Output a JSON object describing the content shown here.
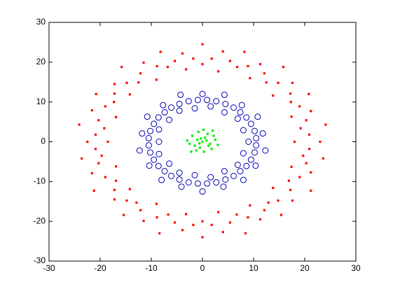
{
  "chart_data": {
    "type": "scatter",
    "xlim": [
      -30,
      30
    ],
    "ylim": [
      -30,
      30
    ],
    "xticks": [
      -30,
      -20,
      -10,
      0,
      10,
      20,
      30
    ],
    "yticks": [
      -30,
      -20,
      -10,
      0,
      10,
      20,
      30
    ],
    "series": [
      {
        "color": "#ff0000",
        "marker": "dot",
        "x": [
          18,
          19.2,
          17.4,
          17.3,
          13.8,
          12.5,
          9.3,
          6.8,
          3.1,
          0,
          -3.2,
          -6.8,
          -9,
          -12.5,
          -14.2,
          -17.3,
          -16.9,
          -19.2,
          -18.5,
          -19.7,
          -16.9,
          -16.9,
          -14.2,
          -12.9,
          -9,
          -6.7,
          -3.2,
          0,
          3.1,
          6.7,
          9.3,
          12.9,
          13.8,
          16.9,
          17.4,
          19.7,
          23,
          24.1,
          21.2,
          20.8,
          17.6,
          15.8,
          11.3,
          8.2,
          4,
          0,
          -3.9,
          -8.2,
          -11.5,
          -15.8,
          -17.2,
          -20.8,
          -21.6,
          -24.1,
          -22.5,
          -23.6,
          -21.6,
          -21.2,
          -17.2,
          -15.4,
          -11.5,
          -8.4,
          -3.9,
          0,
          4,
          8.4,
          11.3,
          15.4,
          17.6,
          21.2,
          21.2,
          23.6,
          20.9,
          20.3,
          19,
          17.2,
          14.8,
          12.1,
          8.9,
          5.4,
          1.8,
          -1.8,
          -5.4,
          -8.9,
          -12.1,
          -14.8,
          -17.2,
          -19,
          -20.3,
          -20.9,
          -20.9,
          -20.3,
          -19,
          -17.2,
          -14.8,
          -12.1,
          -8.9,
          -5.4,
          -1.8,
          1.8,
          5.4,
          8.9,
          12.1,
          14.8,
          17.2,
          19,
          20.3,
          20.9
        ],
        "values": [
          0,
          3.4,
          6.3,
          10,
          11.6,
          14.9,
          16,
          18.8,
          17.7,
          19.5,
          18.2,
          18.8,
          15.6,
          14.9,
          11.9,
          10,
          6.2,
          3.4,
          0,
          -3.5,
          -6.2,
          -9.8,
          -11.9,
          -15.3,
          -15.6,
          -18.3,
          -18.2,
          -20,
          -17.7,
          -18.3,
          -16,
          -15.3,
          -11.6,
          -9.8,
          -6.3,
          -3.5,
          0,
          4.3,
          7.7,
          12,
          14.8,
          18.8,
          19.5,
          22.6,
          22.7,
          24.5,
          22.2,
          22.6,
          19.9,
          18.8,
          14.5,
          12,
          7.9,
          4.3,
          0,
          -4.2,
          -7.9,
          -12.3,
          -14.5,
          -18.4,
          -19.9,
          -23,
          -22.2,
          -24,
          -22.7,
          -23,
          -19.5,
          -18.4,
          -14.8,
          -12.3,
          -7.7,
          -4.2,
          1.8,
          5.4,
          8.9,
          12.1,
          14.8,
          17.2,
          19,
          20.3,
          20.9,
          20.9,
          20.3,
          19,
          17.2,
          14.8,
          12.1,
          8.9,
          5.4,
          1.8,
          -1.8,
          -5.4,
          -8.9,
          -12.1,
          -14.8,
          -17.2,
          -19,
          -20.3,
          -20.9,
          -20.9,
          -20.3,
          -19,
          -17.2,
          -14.8,
          -12.1,
          -8.9,
          -5.4,
          -1.8
        ]
      },
      {
        "color": "#0000b4",
        "marker": "circle",
        "x": [
          9,
          11.8,
          8,
          10.8,
          6.9,
          7.7,
          4.3,
          4.3,
          1.6,
          0,
          -1.5,
          -4.3,
          -4.5,
          -7.7,
          -6.5,
          -10.8,
          -8.5,
          -11.8,
          -8.5,
          -12.3,
          -8.5,
          -10.4,
          -6.5,
          -8,
          -4.5,
          -4.1,
          -1.5,
          0,
          1.6,
          4.1,
          4.3,
          8,
          6.9,
          10.4,
          8,
          12.3,
          10.5,
          10.2,
          9.5,
          8.6,
          7.4,
          6.1,
          4.5,
          2.7,
          0.9,
          -0.9,
          -2.7,
          -4.5,
          -6.1,
          -7.4,
          -8.6,
          -9.5,
          -10.2,
          -10.5,
          -10.5,
          -10.2,
          -9.5,
          -8.6,
          -7.4,
          -6.1,
          -4.5,
          -2.7,
          -0.9,
          0.9,
          2.7,
          4.5,
          6.1,
          7.4,
          8.6,
          9.5,
          10.2,
          10.5
        ],
        "values": [
          0,
          2.1,
          2.9,
          6.3,
          5.8,
          9.2,
          7.4,
          11.8,
          8.9,
          12,
          8.4,
          11.8,
          7.8,
          9.2,
          5.5,
          6.3,
          3.1,
          2.1,
          0,
          -2.2,
          -3.1,
          -6,
          -5.5,
          -9.6,
          -7.8,
          -11.3,
          -8.4,
          -12.5,
          -8.9,
          -11.3,
          -7.4,
          -9.6,
          -5.8,
          -6,
          -2.9,
          -2.2,
          0.9,
          2.7,
          4.5,
          6.1,
          7.4,
          8.6,
          9.5,
          10.2,
          10.5,
          10.5,
          10.2,
          9.5,
          8.6,
          7.4,
          6.1,
          4.5,
          2.7,
          0.9,
          -0.9,
          -2.7,
          -4.5,
          -6.1,
          -7.4,
          -8.6,
          -9.5,
          -10.2,
          -10.5,
          -10.5,
          -10.2,
          -9.5,
          -8.6,
          -7.4,
          -6.1,
          -4.5,
          -2.7,
          -0.9
        ]
      },
      {
        "color": "#00ee00",
        "marker": "dot",
        "x": [
          0,
          0.5,
          -1,
          1.5,
          -0.5,
          1,
          -2,
          2.5,
          -1.5,
          0.3,
          -2.5,
          1.8,
          -0.8,
          2.2,
          -1.2,
          0.8,
          -0.3,
          3,
          -3,
          0.2,
          1.2,
          -0.6,
          2,
          -2.2
        ],
        "values": [
          0,
          1,
          0.5,
          -0.5,
          -1.5,
          2,
          1.5,
          0.5,
          -1,
          -2.5,
          -0.5,
          -1.8,
          2.5,
          1.5,
          -2.2,
          0.3,
          0.8,
          -0.8,
          0.3,
          3,
          -1,
          -0.4,
          2.8,
          -2.5
        ]
      }
    ]
  }
}
